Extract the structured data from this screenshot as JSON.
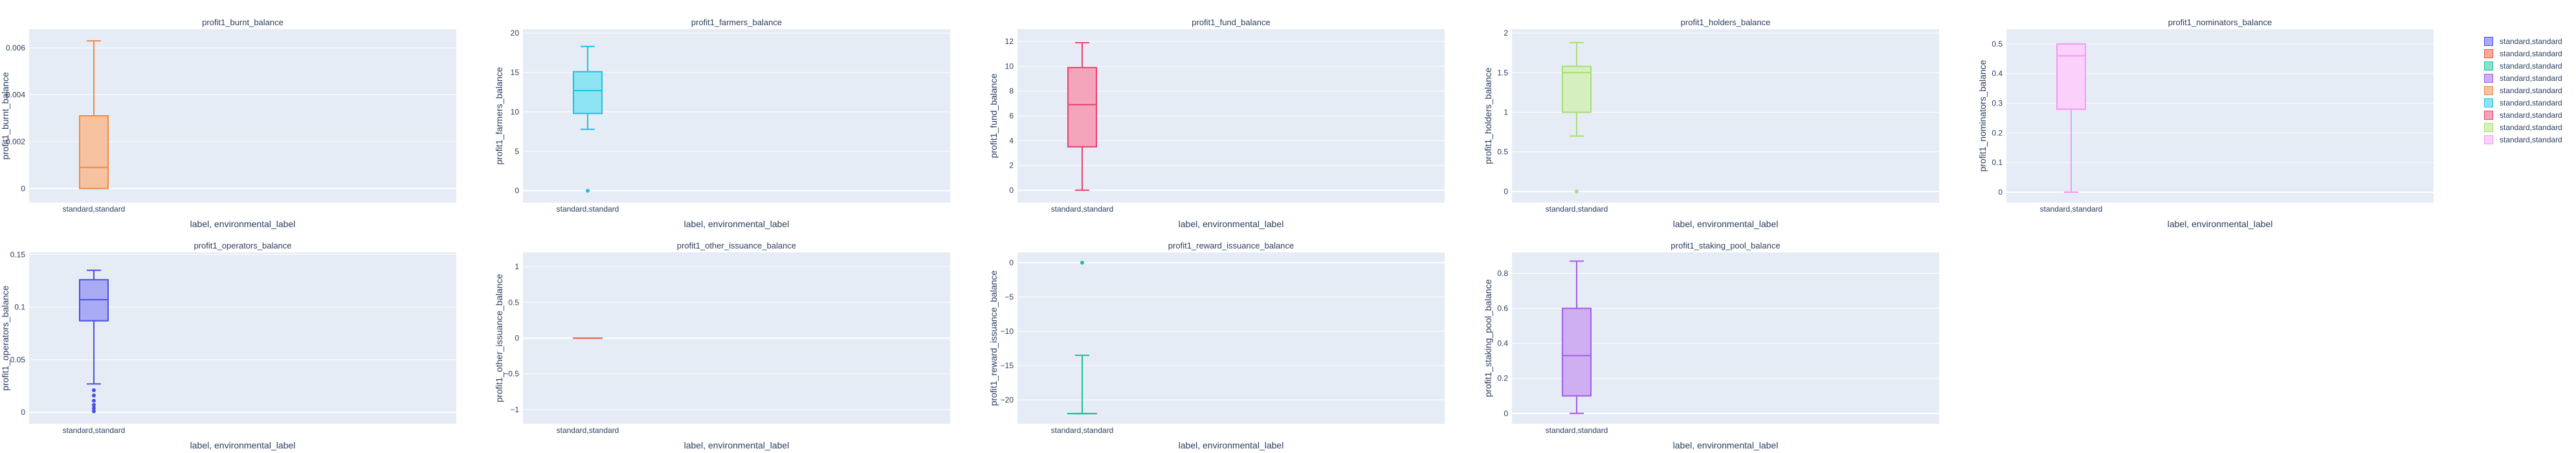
{
  "chart_data": [
    {
      "type": "box",
      "title": "profit1_burnt_balance",
      "xlabel": "label, environmental_label",
      "ylabel": "profit1_burnt_balance",
      "category": "standard,standard",
      "color": "#ef8a4a",
      "fill": "#f6c29f",
      "ylim": [
        -0.0006,
        0.0068
      ],
      "ticks": [
        0,
        0.002,
        0.004,
        0.006
      ],
      "tick_labels": [
        "0",
        "0.002",
        "0.004",
        "0.006"
      ],
      "min": 0,
      "q1": 0,
      "median": 0.0009,
      "q3": 0.0031,
      "max": 0.0063,
      "outliers": []
    },
    {
      "type": "box",
      "title": "profit1_farmers_balance",
      "xlabel": "label, environmental_label",
      "ylabel": "profit1_farmers_balance",
      "category": "standard,standard",
      "color": "#19c3e3",
      "fill": "#8ee4f3",
      "ylim": [
        -1.5,
        20.5
      ],
      "ticks": [
        0,
        5,
        10,
        15,
        20
      ],
      "tick_labels": [
        "0",
        "5",
        "10",
        "15",
        "20"
      ],
      "min": 7.8,
      "q1": 9.8,
      "median": 12.7,
      "q3": 15.1,
      "max": 18.3,
      "outliers": [
        0
      ]
    },
    {
      "type": "box",
      "title": "profit1_fund_balance",
      "xlabel": "label, environmental_label",
      "ylabel": "profit1_fund_balance",
      "category": "standard,standard",
      "color": "#e8406e",
      "fill": "#f4a5bb",
      "ylim": [
        -1,
        13
      ],
      "ticks": [
        0,
        2,
        4,
        6,
        8,
        10,
        12
      ],
      "tick_labels": [
        "0",
        "2",
        "4",
        "6",
        "8",
        "10",
        "12"
      ],
      "min": 0,
      "q1": 3.5,
      "median": 6.9,
      "q3": 9.9,
      "max": 11.9,
      "outliers": []
    },
    {
      "type": "box",
      "title": "profit1_holders_balance",
      "xlabel": "label, environmental_label",
      "ylabel": "profit1_holders_balance",
      "category": "standard,standard",
      "color": "#a8df72",
      "fill": "#d6efbf",
      "ylim": [
        -0.14,
        2.05
      ],
      "ticks": [
        0,
        0.5,
        1,
        1.5,
        2
      ],
      "tick_labels": [
        "0",
        "0.5",
        "1",
        "1.5",
        "2"
      ],
      "min": 0.7,
      "q1": 1.0,
      "median": 1.5,
      "q3": 1.58,
      "max": 1.88,
      "outliers": [
        0
      ]
    },
    {
      "type": "box",
      "title": "profit1_nominators_balance",
      "xlabel": "label, environmental_label",
      "ylabel": "profit1_nominators_balance",
      "category": "standard,standard",
      "color": "#f49af2",
      "fill": "#fbd0fa",
      "ylim": [
        -0.035,
        0.55
      ],
      "ticks": [
        0,
        0.1,
        0.2,
        0.3,
        0.4,
        0.5
      ],
      "tick_labels": [
        "0",
        "0.1",
        "0.2",
        "0.3",
        "0.4",
        "0.5"
      ],
      "min": 0,
      "q1": 0.28,
      "median": 0.46,
      "q3": 0.5,
      "max": 0.5,
      "outliers": []
    },
    {
      "type": "box",
      "title": "profit1_operators_balance",
      "xlabel": "label, environmental_label",
      "ylabel": "profit1_operators_balance",
      "category": "standard,standard",
      "color": "#4a4fe0",
      "fill": "#a9acf4",
      "ylim": [
        -0.011,
        0.152
      ],
      "ticks": [
        0,
        0.05,
        0.1,
        0.15
      ],
      "tick_labels": [
        "0",
        "0.05",
        "0.1",
        "0.15"
      ],
      "min": 0.027,
      "q1": 0.087,
      "median": 0.107,
      "q3": 0.126,
      "max": 0.135,
      "outliers": [
        0.001,
        0.004,
        0.007,
        0.011,
        0.016,
        0.021
      ]
    },
    {
      "type": "box",
      "title": "profit1_other_issuance_balance",
      "xlabel": "label, environmental_label",
      "ylabel": "profit1_other_issuance_balance",
      "category": "standard,standard",
      "color": "#ef553b",
      "fill": "#f7aa9d",
      "ylim": [
        -1.2,
        1.2
      ],
      "ticks": [
        -1,
        -0.5,
        0,
        0.5,
        1
      ],
      "tick_labels": [
        "−1",
        "−0.5",
        "0",
        "0.5",
        "1"
      ],
      "min": 0,
      "q1": 0,
      "median": 0,
      "q3": 0,
      "max": 0,
      "outliers": []
    },
    {
      "type": "box",
      "title": "profit1_reward_issuance_balance",
      "xlabel": "label, environmental_label",
      "ylabel": "profit1_reward_issuance_balance",
      "category": "standard,standard",
      "color": "#17c297",
      "fill": "#8be0ca",
      "ylim": [
        -23.5,
        1.5
      ],
      "ticks": [
        -20,
        -15,
        -10,
        -5,
        0
      ],
      "tick_labels": [
        "−20",
        "−15",
        "−10",
        "−5",
        "0"
      ],
      "min": -22,
      "q1": -22,
      "median": -22,
      "q3": -22,
      "max": -13.5,
      "outliers": [
        0
      ]
    },
    {
      "type": "box",
      "title": "profit1_staking_pool_balance",
      "xlabel": "label, environmental_label",
      "ylabel": "profit1_staking_pool_balance",
      "category": "standard,standard",
      "color": "#a25ee6",
      "fill": "#d0aef2",
      "ylim": [
        -0.06,
        0.92
      ],
      "ticks": [
        0,
        0.2,
        0.4,
        0.6,
        0.8
      ],
      "tick_labels": [
        "0",
        "0.2",
        "0.4",
        "0.6",
        "0.8"
      ],
      "min": 0,
      "q1": 0.1,
      "median": 0.33,
      "q3": 0.6,
      "max": 0.87,
      "outliers": []
    }
  ],
  "legend": [
    {
      "label": "standard,standard",
      "color": "#4a4fe0",
      "fill": "#a9acf4"
    },
    {
      "label": "standard,standard",
      "color": "#ef553b",
      "fill": "#f7aa9d"
    },
    {
      "label": "standard,standard",
      "color": "#17c297",
      "fill": "#8be0ca"
    },
    {
      "label": "standard,standard",
      "color": "#a25ee6",
      "fill": "#d0aef2"
    },
    {
      "label": "standard,standard",
      "color": "#ef8a4a",
      "fill": "#f6c29f"
    },
    {
      "label": "standard,standard",
      "color": "#19c3e3",
      "fill": "#8ee4f3"
    },
    {
      "label": "standard,standard",
      "color": "#e8406e",
      "fill": "#f4a5bb"
    },
    {
      "label": "standard,standard",
      "color": "#a8df72",
      "fill": "#d6efbf"
    },
    {
      "label": "standard,standard",
      "color": "#f49af2",
      "fill": "#fbd0fa"
    }
  ]
}
